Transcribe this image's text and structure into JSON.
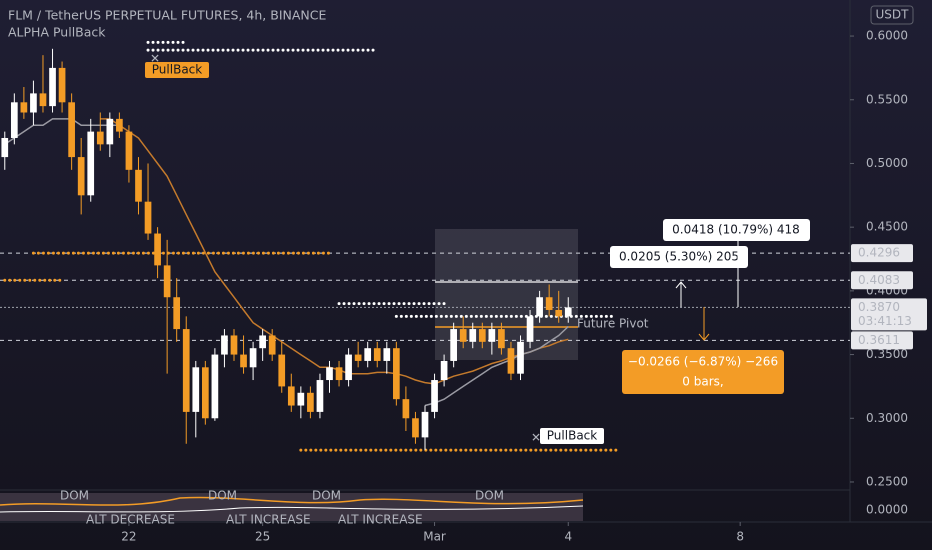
{
  "chart_data": {
    "type": "candlestick",
    "title": "FLM / TetherUS PERPETUAL FUTURES, 4h, BINANCE",
    "subtitle": "ALPHA PullBack",
    "currency": "USDT",
    "up_color": "#ffffff",
    "down_color": "#f39c26",
    "open": [
      0.505,
      0.52,
      0.548,
      0.54,
      0.555,
      0.545,
      0.575,
      0.548,
      0.505,
      0.475,
      0.525,
      0.515,
      0.535,
      0.525,
      0.495,
      0.47,
      0.445,
      0.42,
      0.395,
      0.37,
      0.305,
      0.34,
      0.3,
      0.35,
      0.365,
      0.35,
      0.34,
      0.355,
      0.365,
      0.35,
      0.325,
      0.31,
      0.32,
      0.305,
      0.33,
      0.34,
      0.33,
      0.35,
      0.345,
      0.355,
      0.345,
      0.355,
      0.315,
      0.3,
      0.285,
      0.305,
      0.33,
      0.345,
      0.37,
      0.36,
      0.37,
      0.36,
      0.37,
      0.355,
      0.335,
      0.36,
      0.38,
      0.395,
      0.385,
      0.38
    ],
    "high": [
      0.525,
      0.555,
      0.56,
      0.565,
      0.585,
      0.59,
      0.58,
      0.555,
      0.52,
      0.535,
      0.54,
      0.54,
      0.54,
      0.53,
      0.505,
      0.5,
      0.45,
      0.44,
      0.41,
      0.38,
      0.345,
      0.345,
      0.355,
      0.37,
      0.37,
      0.365,
      0.36,
      0.37,
      0.37,
      0.36,
      0.335,
      0.325,
      0.325,
      0.335,
      0.345,
      0.345,
      0.355,
      0.36,
      0.36,
      0.36,
      0.36,
      0.36,
      0.325,
      0.305,
      0.31,
      0.335,
      0.35,
      0.375,
      0.38,
      0.375,
      0.375,
      0.375,
      0.375,
      0.36,
      0.365,
      0.385,
      0.4,
      0.405,
      0.4,
      0.395
    ],
    "low": [
      0.495,
      0.515,
      0.535,
      0.53,
      0.54,
      0.54,
      0.54,
      0.495,
      0.46,
      0.47,
      0.51,
      0.505,
      0.52,
      0.485,
      0.46,
      0.44,
      0.41,
      0.335,
      0.36,
      0.28,
      0.285,
      0.295,
      0.298,
      0.34,
      0.345,
      0.335,
      0.33,
      0.345,
      0.345,
      0.32,
      0.305,
      0.3,
      0.3,
      0.3,
      0.32,
      0.325,
      0.325,
      0.34,
      0.34,
      0.34,
      0.335,
      0.31,
      0.29,
      0.28,
      0.275,
      0.3,
      0.325,
      0.34,
      0.355,
      0.355,
      0.355,
      0.35,
      0.35,
      0.33,
      0.33,
      0.355,
      0.375,
      0.38,
      0.375,
      0.375
    ],
    "close": [
      0.52,
      0.548,
      0.54,
      0.555,
      0.545,
      0.575,
      0.548,
      0.505,
      0.475,
      0.525,
      0.515,
      0.535,
      0.525,
      0.495,
      0.47,
      0.445,
      0.42,
      0.395,
      0.37,
      0.305,
      0.34,
      0.3,
      0.35,
      0.365,
      0.35,
      0.34,
      0.355,
      0.365,
      0.35,
      0.325,
      0.31,
      0.32,
      0.305,
      0.33,
      0.34,
      0.33,
      0.35,
      0.345,
      0.355,
      0.345,
      0.355,
      0.315,
      0.3,
      0.285,
      0.305,
      0.33,
      0.345,
      0.37,
      0.36,
      0.37,
      0.36,
      0.37,
      0.355,
      0.335,
      0.36,
      0.38,
      0.395,
      0.385,
      0.38,
      0.387
    ],
    "moving_averages": [
      {
        "color": "#c47a2c",
        "values": [
          null,
          null,
          null,
          null,
          null,
          null,
          null,
          null,
          null,
          null,
          0.535,
          0.535,
          0.53,
          0.525,
          0.52,
          0.51,
          0.5,
          0.49,
          0.475,
          0.46,
          0.445,
          0.43,
          0.415,
          0.405,
          0.395,
          0.385,
          0.375,
          0.37,
          0.365,
          0.36,
          0.355,
          0.35,
          0.345,
          0.34,
          0.34,
          0.338,
          0.335,
          0.335,
          0.335,
          0.336,
          0.336,
          0.335,
          0.333,
          0.33,
          0.328,
          0.327,
          0.33,
          0.333,
          0.335,
          0.337,
          0.34,
          0.343,
          0.345,
          0.348,
          0.35,
          0.352,
          0.355,
          0.357,
          0.36,
          0.362
        ]
      },
      {
        "color": "#9a9aa3",
        "values": [
          0.515,
          0.52,
          0.525,
          0.53,
          0.53,
          0.535,
          0.535,
          0.535,
          0.53,
          0.53,
          0.53,
          0.53,
          0.53,
          null,
          null,
          null,
          null,
          null,
          null,
          null,
          null,
          null,
          null,
          null,
          null,
          null,
          null,
          null,
          null,
          null,
          null,
          null,
          null,
          null,
          null,
          null,
          null,
          null,
          null,
          null,
          null,
          null,
          null,
          null,
          0.31,
          0.312,
          0.315,
          0.32,
          0.325,
          0.33,
          0.335,
          0.34,
          0.343,
          0.346,
          0.35,
          0.352,
          0.355,
          0.36,
          0.365,
          0.372
        ]
      }
    ],
    "xlim": [
      -0.5,
      88.5
    ],
    "xticks": [
      {
        "value": 13,
        "label": "22"
      },
      {
        "value": 27,
        "label": "25"
      },
      {
        "value": 45,
        "label": "Mar"
      },
      {
        "value": 59,
        "label": "4"
      },
      {
        "value": 77,
        "label": "8"
      }
    ],
    "ylim": [
      0.2437,
      0.6283
    ],
    "yticks": [
      {
        "value": 0.6,
        "label": "0.6000"
      },
      {
        "value": 0.55,
        "label": "0.5500"
      },
      {
        "value": 0.5,
        "label": "0.5000"
      },
      {
        "value": 0.45,
        "label": "0.4500"
      },
      {
        "value": 0.4,
        "label": "0.4000"
      },
      {
        "value": 0.35,
        "label": "0.3500"
      },
      {
        "value": 0.3,
        "label": "0.3000"
      },
      {
        "value": 0.25,
        "label": "0.2500"
      }
    ],
    "price_lines": [
      {
        "value": 0.4296,
        "label": "0.4296"
      },
      {
        "value": 0.4083,
        "label": "0.4083"
      },
      {
        "value": 0.3611,
        "label": "0.3611"
      }
    ],
    "current_price": {
      "value": 0.387,
      "label": "0.3870",
      "countdown": "03:41:13"
    },
    "dotted_levels": [
      {
        "value": 0.4296,
        "start": 3,
        "end": 34,
        "color": "#f39c26"
      },
      {
        "value": 0.4083,
        "start": 0,
        "end": 6,
        "color": "#f39c26"
      },
      {
        "value": 0.275,
        "start": 31,
        "end": 64,
        "color": "#f39c26"
      },
      {
        "value": 0.589,
        "start": 15,
        "end": 39,
        "color": "#ffffff"
      },
      {
        "value": 0.595,
        "start": 15,
        "end": 19,
        "color": "#ffffff"
      },
      {
        "value": 0.39,
        "start": 35,
        "end": 46,
        "color": "#ffffff"
      },
      {
        "value": 0.38,
        "start": 41,
        "end": 64,
        "color": "#ffffff"
      }
    ],
    "annotations": {
      "pullback_top": "PullBack",
      "pullback_bottom": "PullBack",
      "future_pivot": "Future Pivot",
      "measure_up_long": "0.0418 (10.79%) 418",
      "measure_up_short": "0.0205 (5.30%) 205",
      "measure_down": "−0.0266 (−6.87%) −266",
      "bars": "0 bars,"
    },
    "indicator": {
      "ytick": {
        "value": 0,
        "label": "0.0000"
      },
      "labels": [
        "DOM",
        "DOM",
        "DOM",
        "DOM",
        "ALT DECREASE",
        "ALT INCREASE",
        "ALT INCREASE"
      ]
    }
  }
}
